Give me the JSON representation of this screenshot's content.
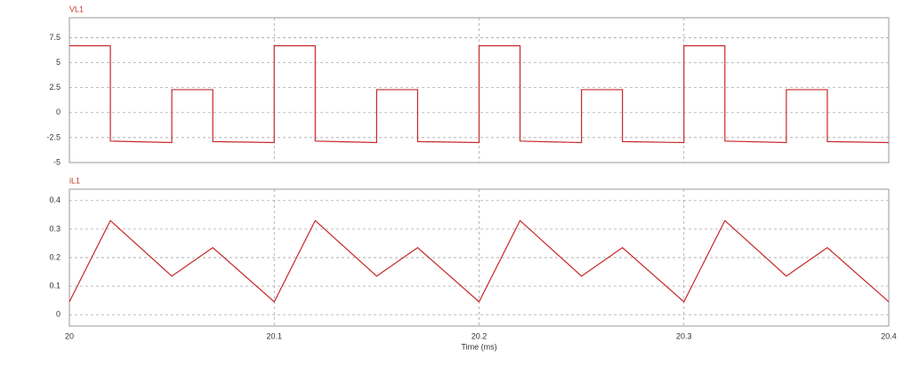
{
  "chart_data": [
    {
      "type": "line",
      "title": "VL1",
      "color": "#c62828",
      "x": [
        20,
        20.02,
        20.02,
        20.05,
        20.05,
        20.07,
        20.07,
        20.1,
        20.1,
        20.12,
        20.12,
        20.15,
        20.15,
        20.17,
        20.17,
        20.2,
        20.2,
        20.22,
        20.22,
        20.25,
        20.25,
        20.27,
        20.27,
        20.3,
        20.3,
        20.32,
        20.32,
        20.35,
        20.35,
        20.37,
        20.37,
        20.4
      ],
      "values": [
        6.7,
        6.7,
        -2.85,
        -3.0,
        2.3,
        2.3,
        -2.9,
        -3.0,
        6.7,
        6.7,
        -2.85,
        -3.0,
        2.3,
        2.3,
        -2.9,
        -3.0,
        6.7,
        6.7,
        -2.85,
        -3.0,
        2.3,
        2.3,
        -2.9,
        -3.0,
        6.7,
        6.7,
        -2.85,
        -3.0,
        2.3,
        2.3,
        -2.9,
        -3.0
      ],
      "xlim": [
        20,
        20.4
      ],
      "xticks": [
        20,
        20.1,
        20.2,
        20.3,
        20.4
      ],
      "ylim": [
        -5,
        9.5
      ],
      "yticks": [
        7.5,
        5,
        2.5,
        0,
        -2.5,
        -5
      ],
      "grid": true
    },
    {
      "type": "line",
      "title": "iL1",
      "color": "#c62828",
      "xlabel": "Time (ms)",
      "x": [
        20,
        20.02,
        20.05,
        20.07,
        20.1,
        20.12,
        20.15,
        20.17,
        20.2,
        20.22,
        20.25,
        20.27,
        20.3,
        20.32,
        20.35,
        20.37,
        20.4
      ],
      "values": [
        0.045,
        0.33,
        0.135,
        0.235,
        0.045,
        0.33,
        0.135,
        0.235,
        0.045,
        0.33,
        0.135,
        0.235,
        0.045,
        0.33,
        0.135,
        0.235,
        0.045
      ],
      "xlim": [
        20,
        20.4
      ],
      "xticks": [
        20,
        20.1,
        20.2,
        20.3,
        20.4
      ],
      "ylim": [
        -0.04,
        0.44
      ],
      "yticks": [
        0.4,
        0.3,
        0.2,
        0.1,
        0
      ],
      "grid": true
    }
  ]
}
